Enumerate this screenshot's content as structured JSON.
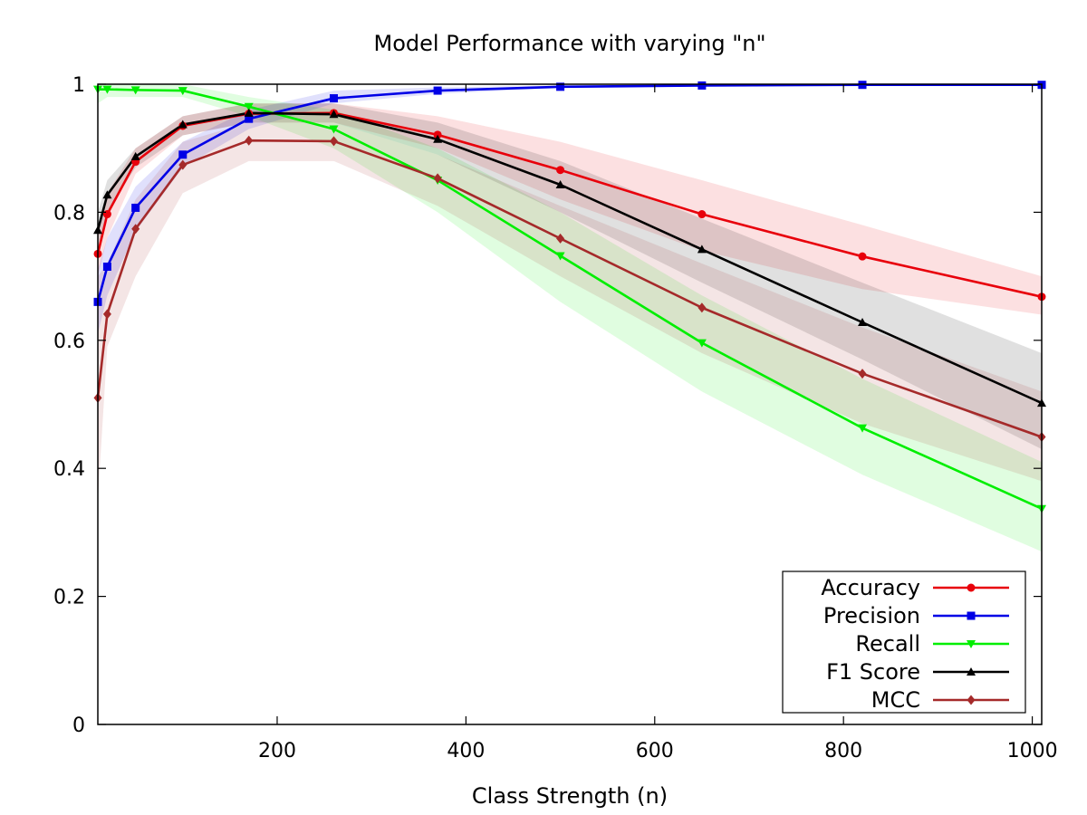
{
  "chart_data": {
    "type": "line",
    "title": "Model Performance with varying \"n\"",
    "xlabel": "Class Strength (n)",
    "ylabel": "",
    "xlim": [
      10,
      1010
    ],
    "ylim": [
      0,
      1
    ],
    "x_ticks": [
      200,
      400,
      600,
      800,
      1000
    ],
    "y_ticks": [
      0,
      0.2,
      0.4,
      0.6,
      0.8,
      1
    ],
    "y_tick_labels": [
      "0",
      "0.2",
      "0.4",
      "0.6",
      "0.8",
      "1"
    ],
    "x": [
      10,
      20,
      50,
      100,
      170,
      260,
      370,
      500,
      650,
      820,
      1010
    ],
    "grid": false,
    "legend_position": "bottom-right",
    "series": [
      {
        "name": "Accuracy",
        "color": "#e8000b",
        "marker": "circle",
        "values": [
          0.735,
          0.797,
          0.879,
          0.935,
          0.954,
          0.955,
          0.921,
          0.866,
          0.797,
          0.731,
          0.668
        ],
        "band_lower": [
          0.7,
          0.76,
          0.86,
          0.92,
          0.94,
          0.94,
          0.9,
          0.82,
          0.74,
          0.68,
          0.64
        ],
        "band_upper": [
          0.77,
          0.83,
          0.9,
          0.95,
          0.97,
          0.97,
          0.95,
          0.91,
          0.85,
          0.78,
          0.7
        ]
      },
      {
        "name": "Precision",
        "color": "#0000e6",
        "marker": "square",
        "values": [
          0.66,
          0.715,
          0.807,
          0.89,
          0.946,
          0.978,
          0.99,
          0.996,
          0.998,
          0.999,
          0.999
        ],
        "band_lower": [
          0.61,
          0.67,
          0.77,
          0.87,
          0.93,
          0.97,
          0.985,
          0.994,
          0.997,
          0.998,
          0.998
        ],
        "band_upper": [
          0.71,
          0.76,
          0.84,
          0.91,
          0.96,
          0.99,
          0.995,
          0.998,
          0.999,
          1.0,
          1.0
        ]
      },
      {
        "name": "Recall",
        "color": "#00ee00",
        "marker": "triangle-down",
        "values": [
          0.992,
          0.992,
          0.991,
          0.99,
          0.965,
          0.93,
          0.85,
          0.732,
          0.596,
          0.463,
          0.337
        ],
        "band_lower": [
          0.97,
          0.98,
          0.98,
          0.98,
          0.95,
          0.9,
          0.8,
          0.66,
          0.52,
          0.39,
          0.27
        ],
        "band_upper": [
          1.0,
          1.0,
          1.0,
          1.0,
          0.98,
          0.96,
          0.9,
          0.8,
          0.67,
          0.54,
          0.41
        ]
      },
      {
        "name": "F1 Score",
        "color": "#000000",
        "marker": "triangle-up",
        "values": [
          0.772,
          0.827,
          0.887,
          0.937,
          0.955,
          0.953,
          0.914,
          0.843,
          0.742,
          0.628,
          0.502
        ],
        "band_lower": [
          0.74,
          0.8,
          0.87,
          0.92,
          0.94,
          0.94,
          0.89,
          0.8,
          0.69,
          0.57,
          0.43
        ],
        "band_upper": [
          0.8,
          0.85,
          0.9,
          0.95,
          0.97,
          0.97,
          0.94,
          0.88,
          0.79,
          0.69,
          0.58
        ]
      },
      {
        "name": "MCC",
        "color": "#a52a2a",
        "marker": "diamond",
        "values": [
          0.51,
          0.641,
          0.774,
          0.874,
          0.912,
          0.911,
          0.853,
          0.759,
          0.651,
          0.548,
          0.449
        ],
        "band_lower": [
          0.35,
          0.59,
          0.7,
          0.83,
          0.88,
          0.88,
          0.81,
          0.7,
          0.58,
          0.47,
          0.38
        ],
        "band_upper": [
          0.7,
          0.72,
          0.82,
          0.91,
          0.94,
          0.94,
          0.89,
          0.81,
          0.72,
          0.62,
          0.52
        ]
      }
    ]
  }
}
